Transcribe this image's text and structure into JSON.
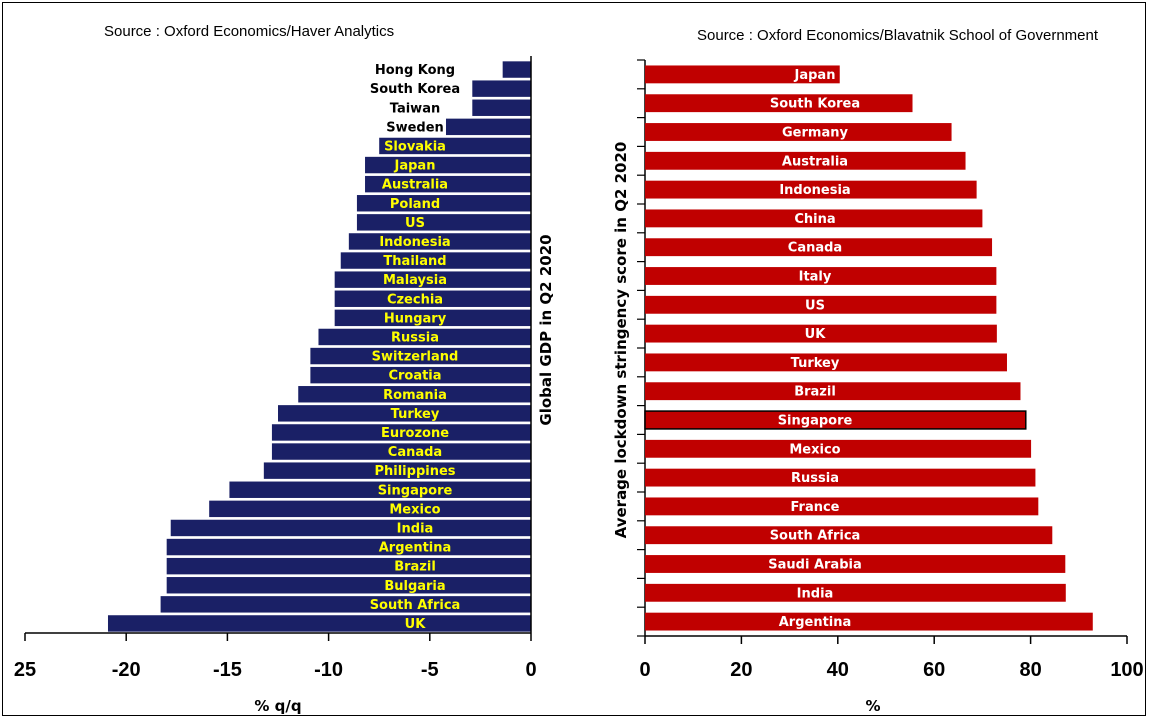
{
  "chart_data": [
    {
      "type": "bar",
      "orientation": "horizontal",
      "source": "Source : Oxford Economics/Haver Analytics",
      "ylabel": "Global GDP in Q2 2020",
      "xlabel": "% q/q",
      "xlim": [
        -25,
        0
      ],
      "xticks": [
        25,
        -20,
        -15,
        -10,
        -5,
        0
      ],
      "bar_color": "#1a2066",
      "categories": [
        "Hong Kong",
        "South Korea",
        "Taiwan",
        "Sweden",
        "Slovakia",
        "Japan",
        "Australia",
        "Poland",
        "US",
        "Indonesia",
        "Thailand",
        "Malaysia",
        "Czechia",
        "Hungary",
        "Russia",
        "Switzerland",
        "Croatia",
        "Romania",
        "Turkey",
        "Eurozone",
        "Canada",
        "Philippines",
        "Singapore",
        "Mexico",
        "India",
        "Argentina",
        "Brazil",
        "Bulgaria",
        "South Africa",
        "UK"
      ],
      "values": [
        -1.4,
        -2.9,
        -2.9,
        -4.2,
        -7.5,
        -8.2,
        -8.2,
        -8.6,
        -8.6,
        -9.0,
        -9.4,
        -9.7,
        -9.7,
        -9.7,
        -10.5,
        -10.9,
        -10.9,
        -11.5,
        -12.5,
        -12.8,
        -12.8,
        -13.2,
        -14.9,
        -15.9,
        -17.8,
        -18.0,
        -18.0,
        -18.0,
        -18.3,
        -20.9
      ],
      "label_colors": [
        "#000000",
        "#000000",
        "#000000",
        "#000000",
        "#ffff00",
        "#ffff00",
        "#ffff00",
        "#ffff00",
        "#ffff00",
        "#ffff00",
        "#ffff00",
        "#ffff00",
        "#ffff00",
        "#ffff00",
        "#ffff00",
        "#ffff00",
        "#ffff00",
        "#ffff00",
        "#ffff00",
        "#ffff00",
        "#ffff00",
        "#ffff00",
        "#ffff00",
        "#ffff00",
        "#ffff00",
        "#ffff00",
        "#ffff00",
        "#ffff00",
        "#ffff00",
        "#ffff00"
      ]
    },
    {
      "type": "bar",
      "orientation": "horizontal",
      "source": "Source : Oxford Economics/Blavatnik School of Government",
      "ylabel": "Average lockdown stringency score in Q2 2020",
      "xlabel": "%",
      "xlim": [
        0,
        100
      ],
      "xticks": [
        0,
        20,
        40,
        60,
        80,
        100
      ],
      "bar_color": "#c00000",
      "highlight_outline": "Singapore",
      "categories": [
        "Japan",
        "South Korea",
        "Germany",
        "Australia",
        "Indonesia",
        "China",
        "Canada",
        "Italy",
        "US",
        "UK",
        "Turkey",
        "Brazil",
        "Singapore",
        "Mexico",
        "Russia",
        "France",
        "South Africa",
        "Saudi Arabia",
        "India",
        "Argentina"
      ],
      "values": [
        40.4,
        55.5,
        63.6,
        66.5,
        68.8,
        70.0,
        72.0,
        72.9,
        72.9,
        73.0,
        75.1,
        77.9,
        79.0,
        80.1,
        81.0,
        81.6,
        84.5,
        87.2,
        87.3,
        92.9
      ]
    }
  ]
}
